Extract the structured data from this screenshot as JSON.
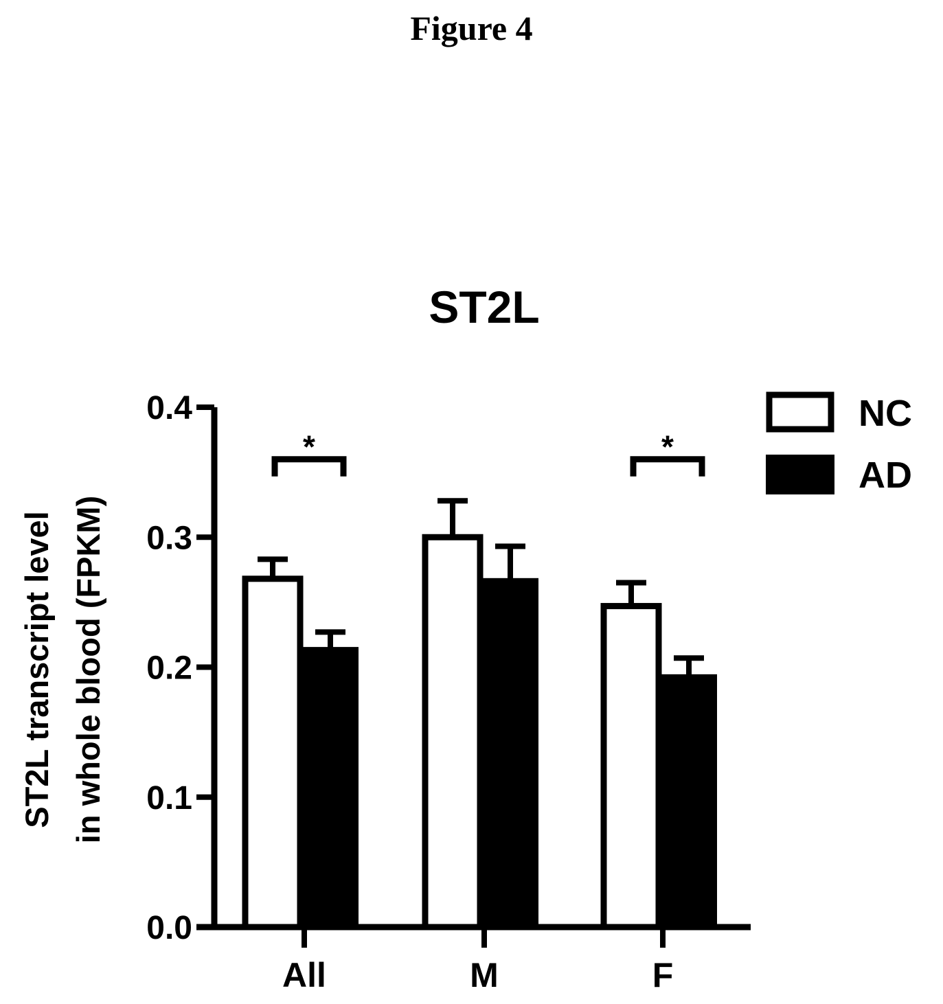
{
  "figure_label": "Figure 4",
  "chart_data": {
    "type": "bar",
    "title": "ST2L",
    "ylabel_lines": [
      "ST2L transcript level",
      "in whole blood (FPKM)"
    ],
    "xlabel": "",
    "categories": [
      "All",
      "M",
      "F"
    ],
    "ylim": [
      0.0,
      0.4
    ],
    "yticks": [
      "0.0",
      "0.1",
      "0.2",
      "0.3",
      "0.4"
    ],
    "ytick_values": [
      0.0,
      0.1,
      0.2,
      0.3,
      0.4
    ],
    "grid": false,
    "legend_position": "top-right",
    "series": [
      {
        "name": "NC",
        "values": [
          0.268,
          0.3,
          0.247
        ],
        "errors": [
          0.015,
          0.028,
          0.018
        ],
        "fill": "#ffffff"
      },
      {
        "name": "AD",
        "values": [
          0.215,
          0.268,
          0.194
        ],
        "errors": [
          0.012,
          0.025,
          0.013
        ],
        "fill": "#000000"
      }
    ],
    "annotations": [
      {
        "category": "All",
        "text": "*",
        "y": 0.36
      },
      {
        "category": "F",
        "text": "*",
        "y": 0.36
      }
    ]
  }
}
